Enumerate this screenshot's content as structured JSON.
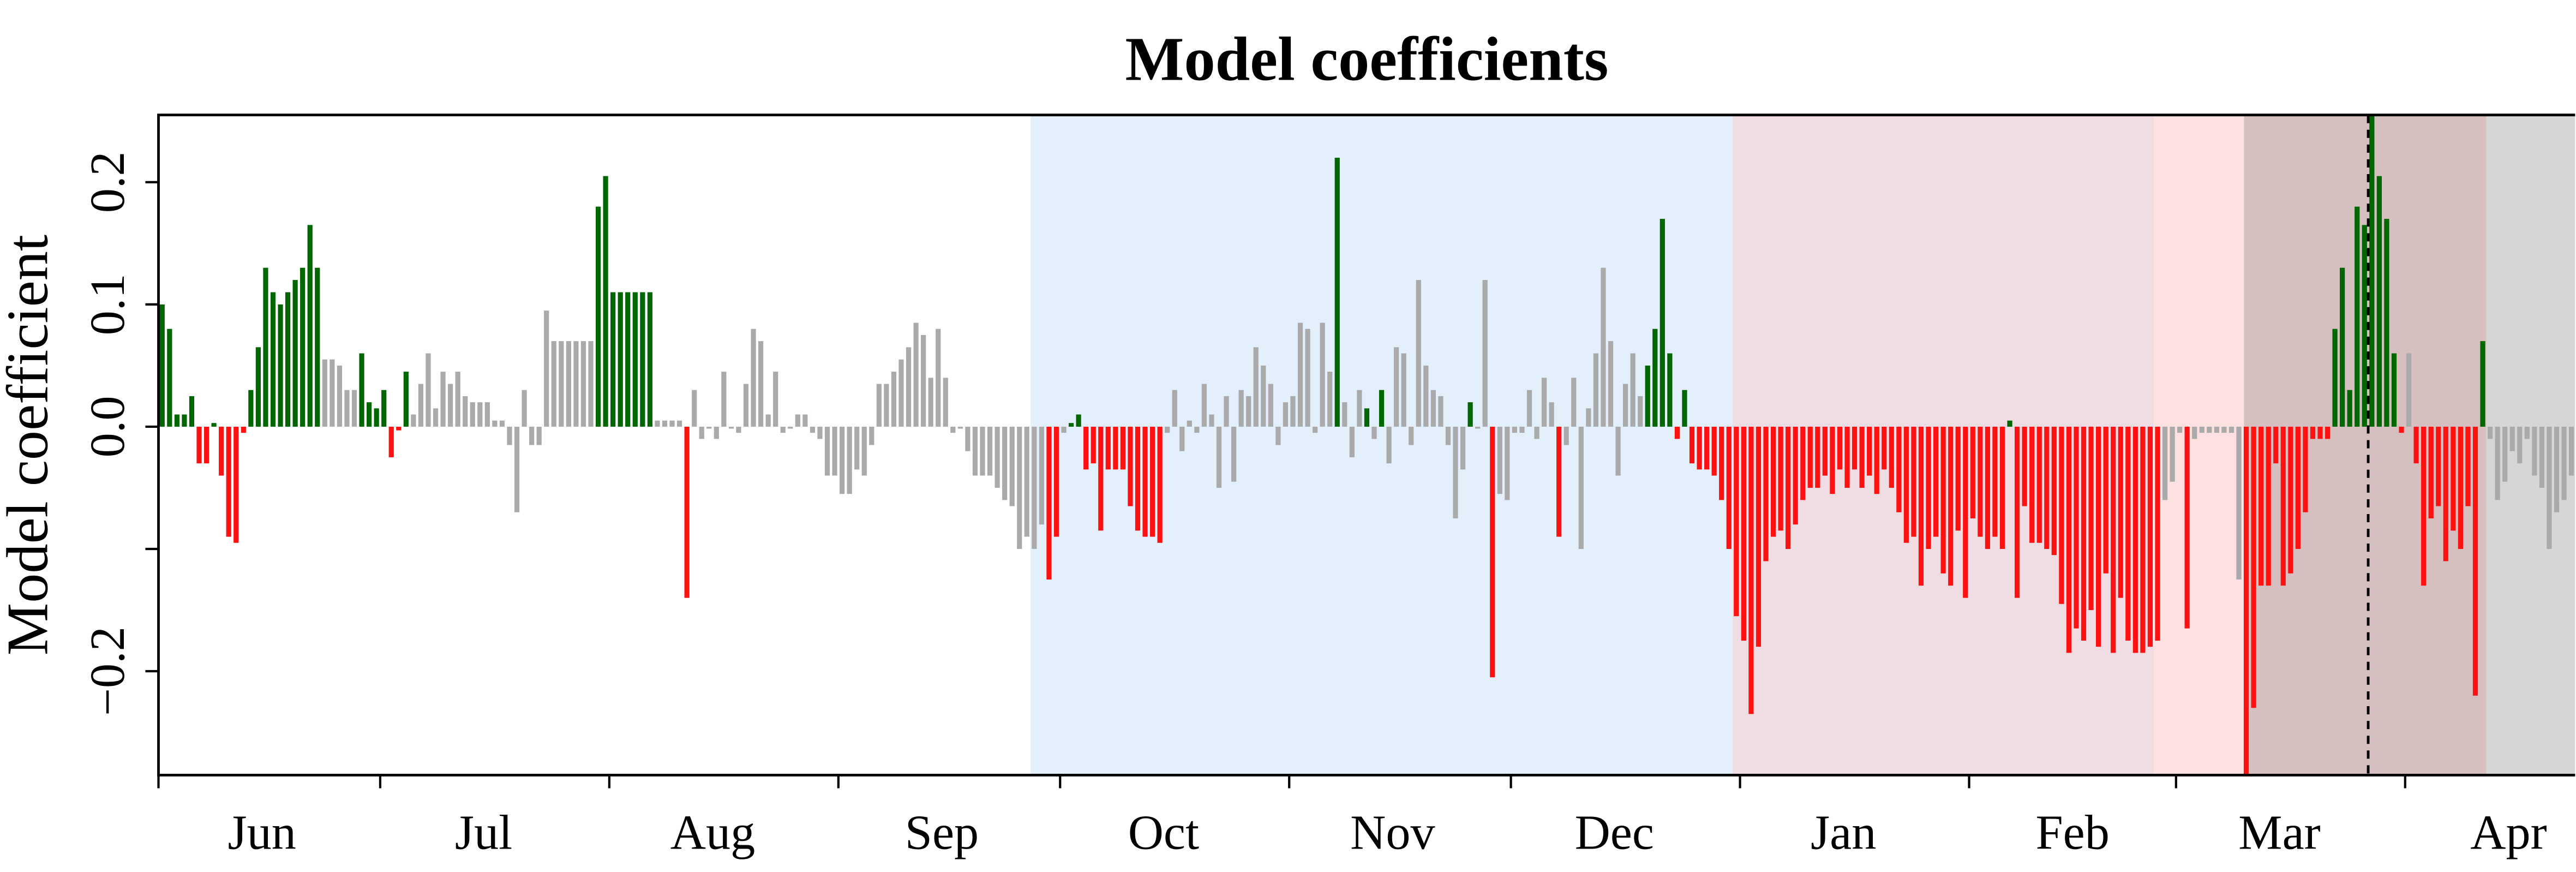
{
  "chart_data": {
    "type": "bar",
    "title": "Model coefficients",
    "ylabel": "Model coefficient",
    "xlim": [
      0,
      327
    ],
    "ylim": [
      -0.285,
      0.255
    ],
    "yticks": [
      {
        "value": -0.2,
        "label": "−0.2"
      },
      {
        "value": -0.1,
        "label": null
      },
      {
        "value": 0,
        "label": "0.0"
      },
      0.1,
      0.2
    ],
    "xticks": [
      0,
      30,
      61,
      92,
      122,
      153,
      183,
      214,
      245,
      273,
      304
    ],
    "xtick_labels": [
      {
        "value": 14,
        "label": "Jun"
      },
      {
        "value": 44,
        "label": "Jul"
      },
      {
        "value": 75,
        "label": "Aug"
      },
      {
        "value": 106,
        "label": "Sep"
      },
      {
        "value": 136,
        "label": "Oct"
      },
      {
        "value": 167,
        "label": "Nov"
      },
      {
        "value": 197,
        "label": "Dec"
      },
      {
        "value": 228,
        "label": "Jan"
      },
      {
        "value": 259,
        "label": "Feb"
      },
      {
        "value": 287,
        "label": "Mar"
      },
      {
        "value": 318,
        "label": "Apr"
      }
    ],
    "regions": [
      {
        "start": 118,
        "end": 213,
        "color": "#e3effb"
      },
      {
        "start": 213,
        "end": 270,
        "color": "#f0dde3"
      },
      {
        "start": 270,
        "end": 282.2,
        "color": "#fde0e0"
      },
      {
        "start": 282.2,
        "end": 315,
        "color": "#d5bfbf"
      },
      {
        "start": 315,
        "end": 327,
        "color": "#d6d6d6"
      }
    ],
    "vline": 299,
    "values": [
      0.1,
      0.08,
      0.01,
      0.01,
      0.025,
      -0.03,
      -0.03,
      0.003,
      -0.04,
      -0.09,
      -0.095,
      -0.005,
      0.03,
      0.065,
      0.13,
      0.11,
      0.1,
      0.11,
      0.12,
      0.13,
      0.165,
      0.13,
      0.055,
      0.055,
      0.05,
      0.03,
      0.03,
      0.06,
      0.02,
      0.015,
      0.03,
      -0.025,
      -0.003,
      0.045,
      0.01,
      0.035,
      0.06,
      0.015,
      0.045,
      0.035,
      0.045,
      0.025,
      0.02,
      0.02,
      0.02,
      0.005,
      0.005,
      -0.015,
      -0.07,
      0.03,
      -0.015,
      -0.015,
      0.095,
      0.07,
      0.07,
      0.07,
      0.07,
      0.07,
      0.07,
      0.18,
      0.205,
      0.11,
      0.11,
      0.11,
      0.11,
      0.11,
      0.11,
      0.005,
      0.005,
      0.005,
      0.005,
      -0.14,
      0.03,
      -0.01,
      0.0,
      -0.01,
      0.045,
      0.0,
      -0.005,
      0.035,
      0.08,
      0.07,
      0.01,
      0.045,
      -0.005,
      0.0,
      0.01,
      0.01,
      -0.005,
      -0.01,
      -0.04,
      -0.04,
      -0.055,
      -0.055,
      -0.035,
      -0.04,
      -0.015,
      0.035,
      0.035,
      0.045,
      0.055,
      0.065,
      0.085,
      0.075,
      0.04,
      0.08,
      0.04,
      -0.005,
      0.0,
      -0.02,
      -0.04,
      -0.04,
      -0.04,
      -0.05,
      -0.06,
      -0.065,
      -0.1,
      -0.09,
      -0.1,
      -0.08,
      -0.125,
      -0.09,
      -0.005,
      0.003,
      0.01,
      -0.035,
      -0.03,
      -0.085,
      -0.035,
      -0.035,
      -0.035,
      -0.065,
      -0.085,
      -0.09,
      -0.09,
      -0.095,
      -0.005,
      0.03,
      -0.02,
      0.005,
      -0.005,
      0.035,
      0.01,
      -0.05,
      0.025,
      -0.045,
      0.03,
      0.025,
      0.065,
      0.05,
      0.035,
      -0.015,
      0.02,
      0.025,
      0.085,
      0.08,
      -0.005,
      0.085,
      0.045,
      0.22,
      0.02,
      -0.025,
      0.03,
      0.015,
      -0.01,
      0.03,
      -0.03,
      0.065,
      0.06,
      -0.015,
      0.12,
      0.05,
      0.03,
      0.025,
      -0.015,
      -0.075,
      -0.035,
      0.02,
      0.0,
      0.12,
      -0.205,
      -0.055,
      -0.06,
      -0.005,
      -0.005,
      0.03,
      -0.01,
      0.04,
      0.02,
      -0.09,
      -0.015,
      0.04,
      -0.1,
      0.015,
      0.06,
      0.13,
      0.07,
      -0.04,
      0.035,
      0.06,
      0.025,
      0.05,
      0.08,
      0.17,
      0.06,
      -0.01,
      0.03,
      -0.03,
      -0.035,
      -0.035,
      -0.04,
      -0.06,
      -0.1,
      -0.155,
      -0.175,
      -0.235,
      -0.18,
      -0.11,
      -0.09,
      -0.085,
      -0.1,
      -0.08,
      -0.06,
      -0.05,
      -0.05,
      -0.04,
      -0.055,
      -0.035,
      -0.05,
      -0.035,
      -0.05,
      -0.04,
      -0.055,
      -0.035,
      -0.05,
      -0.07,
      -0.095,
      -0.09,
      -0.13,
      -0.1,
      -0.09,
      -0.12,
      -0.13,
      -0.085,
      -0.14,
      -0.075,
      -0.09,
      -0.1,
      -0.09,
      -0.1,
      0.005,
      -0.14,
      -0.065,
      -0.095,
      -0.095,
      -0.1,
      -0.105,
      -0.145,
      -0.185,
      -0.165,
      -0.175,
      -0.15,
      -0.18,
      -0.12,
      -0.185,
      -0.14,
      -0.175,
      -0.185,
      -0.185,
      -0.18,
      -0.175,
      -0.06,
      -0.045,
      -0.005,
      -0.165,
      -0.01,
      -0.005,
      -0.005,
      -0.005,
      -0.005,
      -0.005,
      -0.125,
      -0.285,
      -0.23,
      -0.13,
      -0.13,
      -0.03,
      -0.13,
      -0.12,
      -0.1,
      -0.07,
      -0.01,
      -0.01,
      -0.01,
      0.08,
      0.13,
      0.03,
      0.18,
      0.165,
      0.255,
      0.205,
      0.17,
      0.06,
      -0.005,
      0.06,
      -0.03,
      -0.13,
      -0.075,
      -0.065,
      -0.11,
      -0.085,
      -0.1,
      -0.065,
      -0.22,
      0.07,
      -0.01,
      -0.06,
      -0.045,
      -0.02,
      -0.03,
      -0.01,
      -0.04,
      -0.05,
      -0.1,
      -0.07,
      -0.06,
      -0.04
    ],
    "colors": [
      "#060",
      "#060",
      "#060",
      "#060",
      "#060",
      "#f11",
      "#f11",
      "#060",
      "#f11",
      "#f11",
      "#f11",
      "#f11",
      "#060",
      "#060",
      "#060",
      "#060",
      "#060",
      "#060",
      "#060",
      "#060",
      "#060",
      "#060",
      "#aaa",
      "#aaa",
      "#aaa",
      "#aaa",
      "#aaa",
      "#060",
      "#060",
      "#060",
      "#060",
      "#f11",
      "#f11",
      "#060",
      "#aaa",
      "#aaa",
      "#aaa",
      "#aaa",
      "#aaa",
      "#aaa",
      "#aaa",
      "#aaa",
      "#aaa",
      "#aaa",
      "#aaa",
      "#aaa",
      "#aaa",
      "#aaa",
      "#aaa",
      "#aaa",
      "#aaa",
      "#aaa",
      "#aaa",
      "#aaa",
      "#aaa",
      "#aaa",
      "#aaa",
      "#aaa",
      "#aaa",
      "#060",
      "#060",
      "#060",
      "#060",
      "#060",
      "#060",
      "#060",
      "#060",
      "#aaa",
      "#aaa",
      "#aaa",
      "#aaa",
      "#f11",
      "#aaa",
      "#aaa",
      "#aaa",
      "#aaa",
      "#aaa",
      "#aaa",
      "#aaa",
      "#aaa",
      "#aaa",
      "#aaa",
      "#aaa",
      "#aaa",
      "#aaa",
      "#aaa",
      "#aaa",
      "#aaa",
      "#aaa",
      "#aaa",
      "#aaa",
      "#aaa",
      "#aaa",
      "#aaa",
      "#aaa",
      "#aaa",
      "#aaa",
      "#aaa",
      "#aaa",
      "#aaa",
      "#aaa",
      "#aaa",
      "#aaa",
      "#aaa",
      "#aaa",
      "#aaa",
      "#aaa",
      "#aaa",
      "#aaa",
      "#aaa",
      "#aaa",
      "#aaa",
      "#aaa",
      "#aaa",
      "#aaa",
      "#aaa",
      "#aaa",
      "#aaa",
      "#aaa",
      "#aaa",
      "#f11",
      "#f11",
      "#aaa",
      "#060",
      "#060",
      "#f11",
      "#f11",
      "#f11",
      "#f11",
      "#f11",
      "#f11",
      "#f11",
      "#f11",
      "#f11",
      "#f11",
      "#f11",
      "#aaa",
      "#aaa",
      "#aaa",
      "#aaa",
      "#aaa",
      "#aaa",
      "#aaa",
      "#aaa",
      "#aaa",
      "#aaa",
      "#aaa",
      "#aaa",
      "#aaa",
      "#aaa",
      "#aaa",
      "#aaa",
      "#aaa",
      "#aaa",
      "#aaa",
      "#aaa",
      "#aaa",
      "#aaa",
      "#aaa",
      "#060",
      "#aaa",
      "#aaa",
      "#aaa",
      "#060",
      "#aaa",
      "#060",
      "#aaa",
      "#aaa",
      "#aaa",
      "#aaa",
      "#aaa",
      "#aaa",
      "#aaa",
      "#aaa",
      "#aaa",
      "#aaa",
      "#aaa",
      "#060",
      "#aaa",
      "#aaa",
      "#f11",
      "#aaa",
      "#aaa",
      "#aaa",
      "#aaa",
      "#aaa",
      "#aaa",
      "#aaa",
      "#aaa",
      "#f11",
      "#aaa",
      "#aaa",
      "#aaa",
      "#aaa",
      "#aaa",
      "#aaa",
      "#aaa",
      "#aaa",
      "#aaa",
      "#aaa",
      "#aaa",
      "#060",
      "#060",
      "#060",
      "#060",
      "#f11",
      "#060",
      "#f11",
      "#f11",
      "#f11",
      "#f11",
      "#f11",
      "#f11",
      "#f11",
      "#f11",
      "#f11",
      "#f11",
      "#f11",
      "#f11",
      "#f11",
      "#f11",
      "#f11",
      "#f11",
      "#f11",
      "#f11",
      "#f11",
      "#f11",
      "#f11",
      "#f11",
      "#f11",
      "#f11",
      "#f11",
      "#f11",
      "#f11",
      "#f11",
      "#f11",
      "#f11",
      "#f11",
      "#f11",
      "#f11",
      "#f11",
      "#f11",
      "#f11",
      "#f11",
      "#f11",
      "#f11",
      "#f11",
      "#f11",
      "#f11",
      "#f11",
      "#060",
      "#f11",
      "#f11",
      "#f11",
      "#f11",
      "#f11",
      "#f11",
      "#f11",
      "#f11",
      "#f11",
      "#f11",
      "#f11",
      "#f11",
      "#f11",
      "#f11",
      "#f11",
      "#f11",
      "#f11",
      "#f11",
      "#f11",
      "#f11",
      "#aaa",
      "#aaa",
      "#aaa",
      "#f11",
      "#aaa",
      "#aaa",
      "#aaa",
      "#aaa",
      "#aaa",
      "#aaa",
      "#aaa",
      "#f11",
      "#f11",
      "#f11",
      "#f11",
      "#f11",
      "#f11",
      "#f11",
      "#f11",
      "#f11",
      "#f11",
      "#f11",
      "#f11",
      "#060",
      "#060",
      "#060",
      "#060",
      "#060",
      "#060",
      "#060",
      "#060",
      "#060",
      "#f11",
      "#aaa",
      "#f11",
      "#f11",
      "#f11",
      "#f11",
      "#f11",
      "#f11",
      "#f11",
      "#f11",
      "#f11",
      "#060",
      "#aaa",
      "#aaa",
      "#aaa",
      "#aaa",
      "#aaa",
      "#aaa",
      "#aaa",
      "#aaa",
      "#aaa",
      "#aaa",
      "#aaa",
      "#aaa"
    ]
  }
}
